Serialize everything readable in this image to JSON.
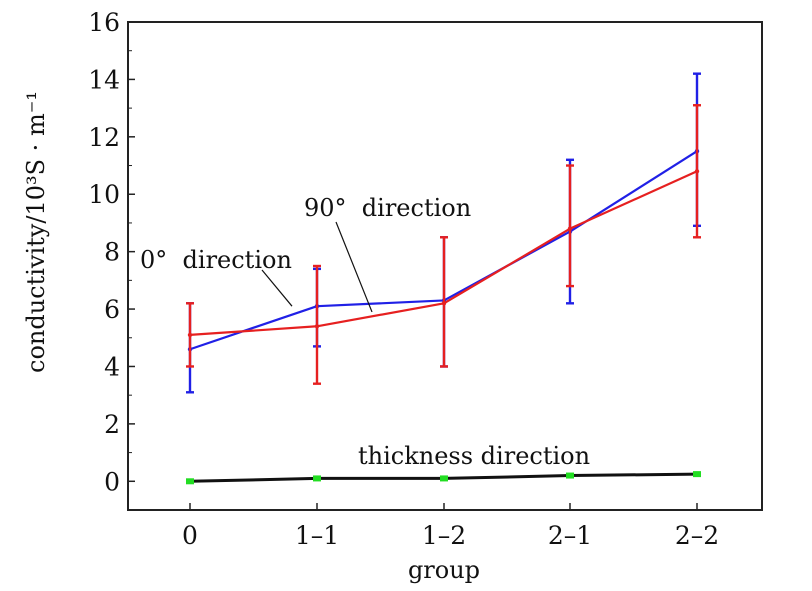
{
  "chart_data": {
    "type": "line",
    "xlabel": "group",
    "ylabel": "conductivity/10³S · m⁻¹",
    "categories": [
      "0",
      "1–1",
      "1–2",
      "2–1",
      "2–2"
    ],
    "ylim": [
      -1,
      16
    ],
    "yticks": [
      0,
      2,
      4,
      6,
      8,
      10,
      12,
      14,
      16
    ],
    "grid": false,
    "legend": "none",
    "series": [
      {
        "name": "90° direction",
        "color": "#2020e6",
        "values": [
          4.6,
          6.1,
          6.3,
          8.7,
          11.5
        ],
        "err_low": [
          3.1,
          4.7,
          4.0,
          6.2,
          8.9
        ],
        "err_high": [
          6.2,
          7.4,
          8.5,
          11.2,
          14.2
        ]
      },
      {
        "name": "0° direction",
        "color": "#e62020",
        "values": [
          5.1,
          5.4,
          6.2,
          8.8,
          10.8
        ],
        "err_low": [
          4.0,
          3.4,
          4.0,
          6.8,
          8.5
        ],
        "err_high": [
          6.2,
          7.5,
          8.5,
          11.0,
          13.1
        ]
      },
      {
        "name": "thickness direction",
        "color": "#111111",
        "marker_color": "#22dd22",
        "values": [
          0.0,
          0.1,
          0.1,
          0.2,
          0.25
        ]
      }
    ],
    "annotations": [
      {
        "text": "90°  direction",
        "target": "90° direction"
      },
      {
        "text": "0°  direction",
        "target": "0° direction"
      },
      {
        "text": "thickness direction",
        "target": "thickness direction"
      }
    ]
  }
}
